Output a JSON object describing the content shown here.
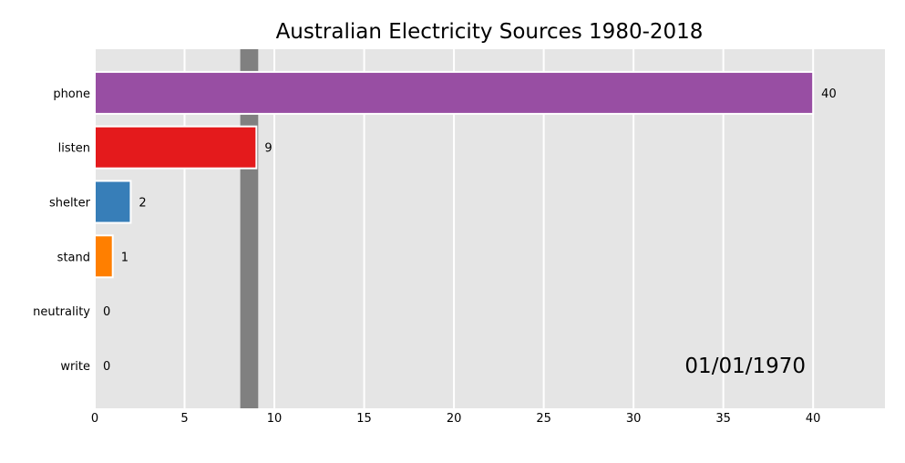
{
  "chart_data": {
    "type": "bar",
    "orientation": "horizontal",
    "title": "Australian Electricity Sources 1980-2018",
    "xlabel": "",
    "ylabel": "",
    "categories": [
      "phone",
      "listen",
      "shelter",
      "stand",
      "neutrality",
      "write"
    ],
    "values": [
      40,
      9,
      2,
      1,
      0,
      0
    ],
    "value_labels": [
      "40",
      "9",
      "2",
      "1",
      "0",
      "0"
    ],
    "bar_colors": [
      "#984ea3",
      "#e41a1c",
      "#377eb8",
      "#ff7f00",
      "#4daf4a",
      "#a65628"
    ],
    "xlim": [
      0,
      44
    ],
    "xticks": [
      0,
      5,
      10,
      15,
      20,
      25,
      30,
      35,
      40
    ],
    "xtick_labels": [
      "0",
      "5",
      "10",
      "15",
      "20",
      "25",
      "30",
      "35",
      "40"
    ],
    "grid": true,
    "marker_band": [
      8.1,
      9.1
    ],
    "date_label": "01/01/1970"
  },
  "colors": {
    "plot_background": "#e5e5e5",
    "grid": "#ffffff",
    "marker_band": "#808080"
  }
}
